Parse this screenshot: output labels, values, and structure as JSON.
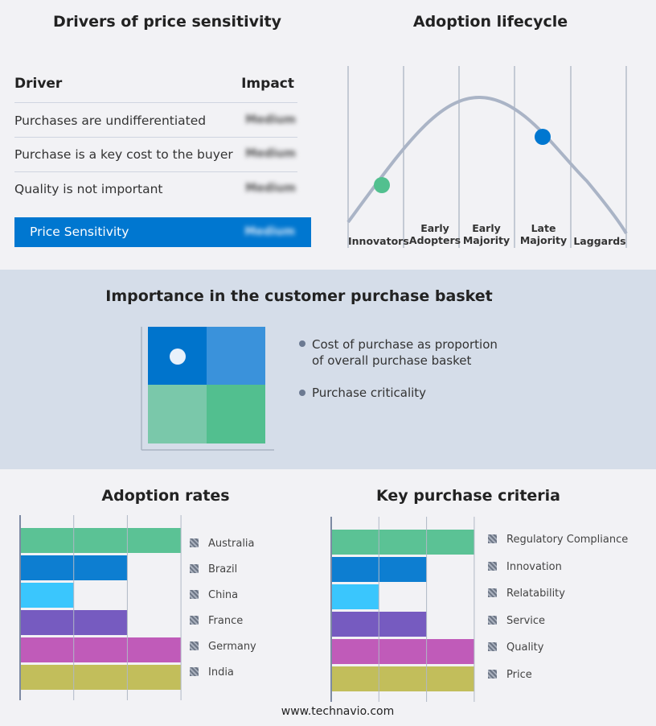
{
  "drivers": {
    "title": "Drivers of price sensitivity",
    "col_driver": "Driver",
    "col_impact": "Impact",
    "rows": [
      {
        "driver": "Purchases are undifferentiated",
        "impact": "Medium"
      },
      {
        "driver": "Purchase is a key cost to the buyer",
        "impact": "Medium"
      },
      {
        "driver": "Quality is not important",
        "impact": "Medium"
      }
    ],
    "summary": {
      "label": "Price Sensitivity",
      "impact": "Medium"
    },
    "accent": "#0077d0"
  },
  "lifecycle": {
    "title": "Adoption lifecycle",
    "stages": [
      "Innovators",
      "Early Adopters",
      "Early Majority",
      "Late Majority",
      "Laggards"
    ],
    "markers": [
      {
        "stage": "Innovators",
        "color": "#52c08f"
      },
      {
        "stage": "Late Majority",
        "color": "#0077d0"
      }
    ]
  },
  "basket": {
    "title": "Importance in the customer purchase basket",
    "legend": [
      "Cost of purchase as proportion of overall purchase basket",
      "Purchase criticality"
    ],
    "quadrant_colors": [
      "#0074cc",
      "#3a92db",
      "#7ac8aa",
      "#52bf8f"
    ],
    "marker_quadrant": "top-left"
  },
  "chart_data": [
    {
      "type": "bar",
      "orientation": "horizontal",
      "title": "Adoption rates",
      "categories": [
        "Australia",
        "Brazil",
        "China",
        "France",
        "Germany",
        "India"
      ],
      "values": [
        3,
        2,
        1,
        2,
        3,
        3
      ],
      "xlim": [
        0,
        3
      ],
      "grid": true,
      "legend": "right",
      "colors": [
        "#52bf8f",
        "#0077cf",
        "#2fc3fd",
        "#6f52bd",
        "#bd52b5",
        "#bfba52"
      ]
    },
    {
      "type": "bar",
      "orientation": "horizontal",
      "title": "Key purchase criteria",
      "categories": [
        "Regulatory Compliance",
        "Innovation",
        "Relatability",
        "Service",
        "Quality",
        "Price"
      ],
      "values": [
        3,
        2,
        1,
        2,
        3,
        3
      ],
      "xlim": [
        0,
        3
      ],
      "grid": true,
      "legend": "right",
      "colors": [
        "#52bf8f",
        "#0077cf",
        "#2fc3fd",
        "#6f52bd",
        "#bd52b5",
        "#bfba52"
      ]
    }
  ],
  "footer": "www.technavio.com"
}
